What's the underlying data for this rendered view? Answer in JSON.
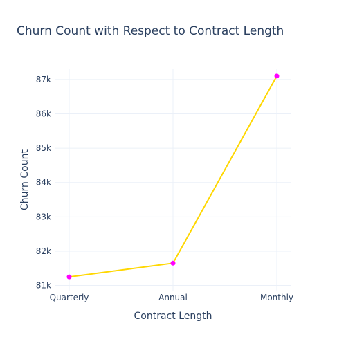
{
  "chart_data": {
    "type": "line",
    "title": "Churn Count with Respect to Contract Length",
    "xlabel": "Contract Length",
    "ylabel": "Churn Count",
    "categories": [
      "Quarterly",
      "Annual",
      "Monthly"
    ],
    "series": [
      {
        "values": [
          81250,
          81650,
          87100
        ],
        "line_color": "#FFD700",
        "marker_color": "#FF00FF"
      }
    ],
    "ylim": [
      80850,
      87300
    ],
    "yticks": [
      81000,
      82000,
      83000,
      84000,
      85000,
      86000,
      87000
    ],
    "ytick_labels": [
      "81k",
      "82k",
      "83k",
      "84k",
      "85k",
      "86k",
      "87k"
    ],
    "grid": true,
    "legend": false
  }
}
